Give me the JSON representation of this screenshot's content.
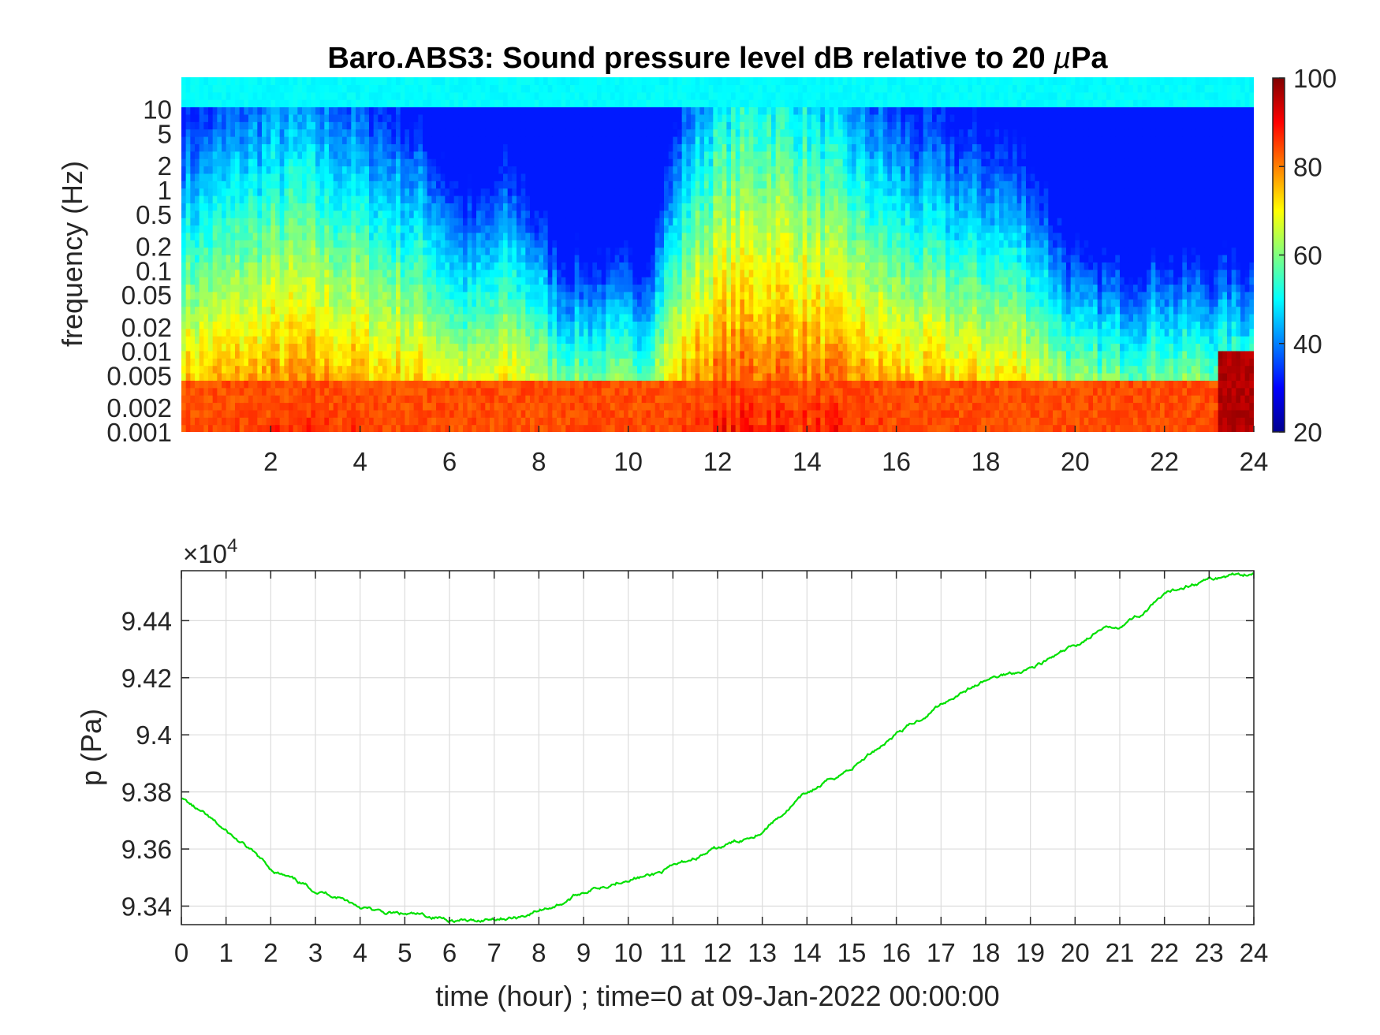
{
  "chart_data": [
    {
      "type": "heatmap",
      "title_main": "Baro.ABS3: Sound pressure level dB relative to 20 ",
      "title_mu": "µ",
      "title_unit": "Pa",
      "ylabel": "frequency (Hz)",
      "y_scale": "log",
      "x_ticks": [
        "2",
        "4",
        "6",
        "8",
        "10",
        "12",
        "14",
        "16",
        "18",
        "20",
        "22",
        "24"
      ],
      "xlim": [
        0,
        24
      ],
      "y_ticks": [
        "0.001",
        "0.002",
        "0.005",
        "0.01",
        "0.02",
        "0.05",
        "0.1",
        "0.2",
        "0.5",
        "1",
        "2",
        "5",
        "10"
      ],
      "ylim": [
        0.001,
        25
      ],
      "colormap": "jet",
      "colorbar": {
        "ticks": [
          "20",
          "40",
          "60",
          "80",
          "100"
        ],
        "range": [
          20,
          100
        ]
      },
      "band_levels_db": {
        "top_above_10hz": 50,
        "quiet_periods_hours": [
          [
            9,
            11
          ],
          [
            19.5,
            24
          ]
        ],
        "loud_periods_hours": [
          [
            0,
            6
          ],
          [
            11,
            16
          ]
        ]
      }
    },
    {
      "type": "line",
      "ylabel": "p (Pa)",
      "xlabel": "time (hour) ; time=0 at 09-Jan-2022 00:00:00",
      "multiplier_base": "×10",
      "multiplier_exp": "4",
      "x_ticks": [
        "0",
        "1",
        "2",
        "3",
        "4",
        "5",
        "6",
        "7",
        "8",
        "9",
        "10",
        "11",
        "12",
        "13",
        "14",
        "15",
        "16",
        "17",
        "18",
        "19",
        "20",
        "21",
        "22",
        "23",
        "24"
      ],
      "y_ticks": [
        "9.34",
        "9.36",
        "9.38",
        "9.4",
        "9.42",
        "9.44"
      ],
      "xlim": [
        0,
        24
      ],
      "ylim": [
        9.3335,
        9.4575
      ],
      "grid": true,
      "line_color": "#00e000",
      "series": [
        {
          "x": [
            0,
            0.5,
            1,
            1.5,
            2,
            2.5,
            3,
            3.5,
            4,
            4.5,
            5,
            5.5,
            6,
            6.5,
            7,
            7.5,
            8,
            8.5,
            9,
            9.5,
            10,
            10.5,
            11,
            11.5,
            12,
            12.5,
            13,
            13.5,
            14,
            14.5,
            15,
            15.5,
            16,
            16.5,
            17,
            17.5,
            18,
            18.5,
            19,
            19.5,
            20,
            20.5,
            21,
            21.5,
            22,
            22.5,
            23,
            23.5,
            24
          ],
          "y": [
            9.378,
            9.372,
            9.366,
            9.36,
            9.353,
            9.349,
            9.3455,
            9.3435,
            9.34,
            9.3375,
            9.337,
            9.3365,
            9.3355,
            9.3345,
            9.336,
            9.336,
            9.3385,
            9.341,
            9.345,
            9.3475,
            9.35,
            9.3505,
            9.3535,
            9.357,
            9.36,
            9.363,
            9.3665,
            9.373,
            9.3795,
            9.384,
            9.3885,
            9.3945,
            9.4005,
            9.405,
            9.411,
            9.4155,
            9.419,
            9.4215,
            9.4235,
            9.427,
            9.431,
            9.436,
            9.4385,
            9.4425,
            9.4485,
            9.4525,
            9.4545,
            9.456,
            9.457
          ]
        }
      ]
    }
  ]
}
